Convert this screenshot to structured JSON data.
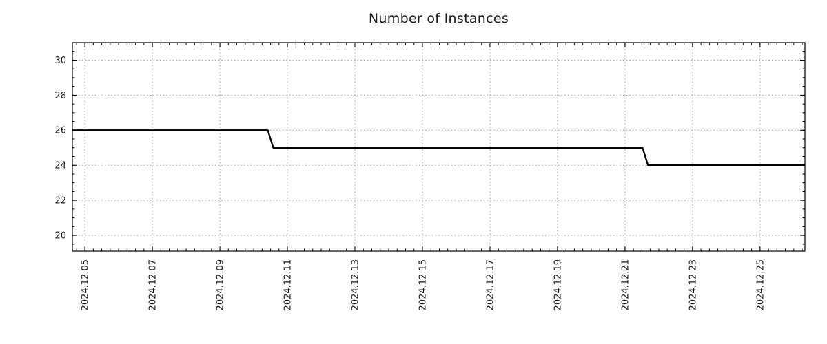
{
  "chart_data": {
    "type": "line",
    "title": "Number of Instances",
    "xlabel": "",
    "ylabel": "",
    "legend": "none",
    "grid": true,
    "style": {
      "line_color": "#000000",
      "line_width": 2.4,
      "grid_color": "#9a9a9a",
      "axis_color": "#000000",
      "tick_label_color": "#1a1a1a"
    },
    "x_unit": "day of December 2024",
    "x_range": [
      4.63,
      26.33
    ],
    "y_range": [
      19.1,
      31.0
    ],
    "x_major_ticks": [
      {
        "day": 5,
        "label": "2024.12.05"
      },
      {
        "day": 7,
        "label": "2024.12.07"
      },
      {
        "day": 9,
        "label": "2024.12.09"
      },
      {
        "day": 11,
        "label": "2024.12.11"
      },
      {
        "day": 13,
        "label": "2024.12.13"
      },
      {
        "day": 15,
        "label": "2024.12.15"
      },
      {
        "day": 17,
        "label": "2024.12.17"
      },
      {
        "day": 19,
        "label": "2024.12.19"
      },
      {
        "day": 21,
        "label": "2024.12.21"
      },
      {
        "day": 23,
        "label": "2024.12.23"
      },
      {
        "day": 25,
        "label": "2024.12.25"
      }
    ],
    "x_minor_step": 0.25,
    "y_major_ticks": [
      20,
      22,
      24,
      26,
      28,
      30
    ],
    "y_minor_step": 0.5,
    "series": [
      {
        "name": "Number of Instances",
        "points": [
          [
            4.63,
            26
          ],
          [
            10.42,
            26
          ],
          [
            10.58,
            25
          ],
          [
            21.52,
            25
          ],
          [
            21.68,
            24
          ],
          [
            26.33,
            24
          ]
        ]
      }
    ]
  }
}
